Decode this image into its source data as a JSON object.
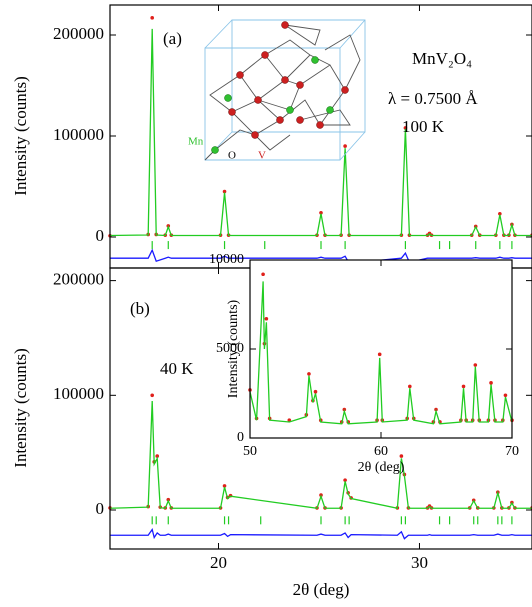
{
  "chart_data": [
    {
      "type": "line",
      "ylabel": "Intensity (counts)",
      "annotations": [
        "(a)",
        "MnV₂O₄",
        "λ = 0.7500 Å",
        "100 K",
        "Mn",
        "O",
        "V"
      ],
      "xlim": [
        14.6,
        35.6
      ],
      "xticks": [
        20,
        30
      ],
      "ylim": [
        -30700,
        229700
      ],
      "yticks": [
        0,
        100000,
        200000
      ],
      "x": [
        14.6,
        16.5,
        16.7,
        16.9,
        17.35,
        17.5,
        17.65,
        20.1,
        20.3,
        20.5,
        24.9,
        25.1,
        25.3,
        26.1,
        26.3,
        26.5,
        29.1,
        29.3,
        29.5,
        30.4,
        30.5,
        30.6,
        32.6,
        32.8,
        33.0,
        33.8,
        34.0,
        34.2,
        34.45,
        34.6,
        34.75,
        35.6
      ],
      "series": [
        {
          "color": "#e0201b",
          "style": "markers",
          "values": [
            1200,
            2500,
            217000,
            2500,
            1800,
            11000,
            1800,
            1800,
            45000,
            1800,
            1800,
            24000,
            1800,
            1800,
            90000,
            1800,
            1800,
            108000,
            1800,
            1800,
            3500,
            1800,
            1800,
            10500,
            1800,
            1800,
            23000,
            1800,
            1800,
            12500,
            1800,
            1800
          ]
        },
        {
          "color": "#22cc22",
          "style": "line",
          "values": [
            1500,
            2000,
            206000,
            2000,
            1500,
            10000,
            1500,
            1500,
            44000,
            1500,
            1500,
            23000,
            1500,
            1500,
            88000,
            1500,
            1500,
            107000,
            1500,
            1500,
            3000,
            1500,
            1500,
            10000,
            1500,
            1500,
            22000,
            1500,
            1500,
            12000,
            1500,
            1500
          ]
        },
        {
          "color": "#1a1aff",
          "style": "line",
          "values": [
            -21000,
            -21000,
            -13000,
            -24000,
            -21000,
            -20000,
            -21000,
            -21000,
            -19000,
            -21000,
            -21000,
            -20000,
            -21000,
            -21000,
            -19000,
            -26000,
            -21000,
            -16000,
            -25000,
            -21000,
            -21000,
            -21000,
            -21000,
            -20500,
            -21000,
            -21000,
            -20000,
            -21000,
            -21000,
            -20500,
            -21000,
            -21000
          ]
        },
        {
          "color": "#22cc22",
          "style": "ticks",
          "x": [
            16.7,
            17.5,
            20.3,
            22.3,
            25.1,
            26.3,
            29.3,
            31.0,
            31.5,
            32.8,
            34.0,
            34.6
          ],
          "values": [
            -8000,
            -8000,
            -8000,
            -8000,
            -8000,
            -8000,
            -8000,
            -8000,
            -8000,
            -8000,
            -8000,
            -8000
          ]
        }
      ]
    },
    {
      "type": "line",
      "ylabel": "Intensity (counts)",
      "xlabel": "2θ  (deg)",
      "annotations": [
        "(b)",
        "40 K"
      ],
      "xlim": [
        14.6,
        35.6
      ],
      "xticks": [
        20,
        30
      ],
      "ylim": [
        -34000,
        211000
      ],
      "yticks": [
        0,
        100000,
        200000
      ],
      "x": [
        14.6,
        16.5,
        16.7,
        16.8,
        16.95,
        17.1,
        17.35,
        17.5,
        17.65,
        20.1,
        20.3,
        20.45,
        20.6,
        24.9,
        25.1,
        25.3,
        26.1,
        26.3,
        26.45,
        26.6,
        28.9,
        29.1,
        29.25,
        29.45,
        30.4,
        30.5,
        30.6,
        32.5,
        32.7,
        32.9,
        33.7,
        33.9,
        34.1,
        34.45,
        34.6,
        34.75,
        35.6
      ],
      "series": [
        {
          "color": "#e0201b",
          "style": "markers",
          "values": [
            1800,
            3000,
            100000,
            42000,
            47000,
            2500,
            1800,
            9000,
            1800,
            1800,
            21000,
            11000,
            12500,
            1800,
            13000,
            1800,
            1800,
            26000,
            15000,
            10500,
            1800,
            47000,
            31000,
            1800,
            1800,
            3500,
            1800,
            1800,
            8500,
            1800,
            1800,
            15500,
            1800,
            1800,
            6500,
            1800,
            1800
          ]
        },
        {
          "color": "#22cc22",
          "style": "line",
          "values": [
            1500,
            2500,
            95000,
            40000,
            45000,
            2000,
            1500,
            8000,
            1500,
            1500,
            20000,
            10000,
            12000,
            1500,
            12000,
            1500,
            1500,
            25000,
            14000,
            10000,
            1500,
            45000,
            30000,
            1500,
            1500,
            3000,
            1500,
            1500,
            8000,
            1500,
            1500,
            15000,
            1500,
            1500,
            6000,
            1500,
            1500
          ]
        },
        {
          "color": "#1a1aff",
          "style": "line",
          "values": [
            -22000,
            -22000,
            -17000,
            -24000,
            -20000,
            -22000,
            -22000,
            -21000,
            -22000,
            -22000,
            -20500,
            -23000,
            -21500,
            -22000,
            -21000,
            -22000,
            -22000,
            -20000,
            -24000,
            -21500,
            -22000,
            -19000,
            -25000,
            -22000,
            -22000,
            -21500,
            -22000,
            -22000,
            -21500,
            -22000,
            -22000,
            -21000,
            -22000,
            -22000,
            -21500,
            -22000,
            -22000
          ]
        },
        {
          "color": "#22cc22",
          "style": "ticks",
          "x": [
            16.7,
            16.9,
            17.5,
            20.3,
            20.5,
            22.1,
            25.1,
            26.3,
            26.5,
            29.1,
            29.3,
            31.0,
            31.5,
            32.7,
            32.9,
            33.9,
            34.1,
            34.6
          ],
          "values": [
            -9000,
            -9000,
            -9000,
            -9000,
            -9000,
            -9000,
            -9000,
            -9000,
            -9000,
            -9000,
            -9000,
            -9000,
            -9000,
            -9000,
            -9000,
            -9000,
            -9000,
            -9000
          ]
        }
      ]
    },
    {
      "type": "line",
      "ylabel": "Intensity (counts)",
      "xlabel": "2θ  (deg)",
      "xlim": [
        50,
        70
      ],
      "xticks": [
        50,
        60,
        70
      ],
      "ylim": [
        0,
        10000
      ],
      "yticks": [
        0,
        5000,
        10000
      ],
      "x": [
        50,
        50.5,
        51.0,
        51.1,
        51.25,
        51.5,
        53,
        54.3,
        54.5,
        54.8,
        55.0,
        55.4,
        57,
        57.2,
        57.5,
        59.7,
        59.9,
        60.1,
        62.0,
        62.2,
        62.5,
        64.0,
        64.2,
        64.5,
        66.1,
        66.3,
        66.5,
        67.0,
        67.2,
        67.5,
        68.2,
        68.4,
        68.7,
        69.3,
        69.5,
        70
      ],
      "series": [
        {
          "color": "#e0201b",
          "style": "markers",
          "values": [
            2700,
            1100,
            9200,
            5300,
            6700,
            1100,
            1000,
            1300,
            3600,
            2100,
            2600,
            1000,
            900,
            1600,
            900,
            1000,
            4700,
            1000,
            1100,
            2900,
            1100,
            900,
            1600,
            900,
            1000,
            2900,
            1000,
            1000,
            4100,
            1000,
            1000,
            3100,
            1000,
            1000,
            2400,
            1000
          ]
        },
        {
          "color": "#22cc22",
          "style": "line",
          "values": [
            2600,
            1000,
            8800,
            5000,
            6500,
            1000,
            900,
            1200,
            3500,
            2000,
            2500,
            900,
            800,
            1500,
            800,
            900,
            4500,
            900,
            1000,
            2800,
            1000,
            800,
            1500,
            800,
            900,
            2800,
            900,
            900,
            4000,
            900,
            900,
            3000,
            900,
            900,
            2300,
            900
          ]
        }
      ]
    }
  ]
}
